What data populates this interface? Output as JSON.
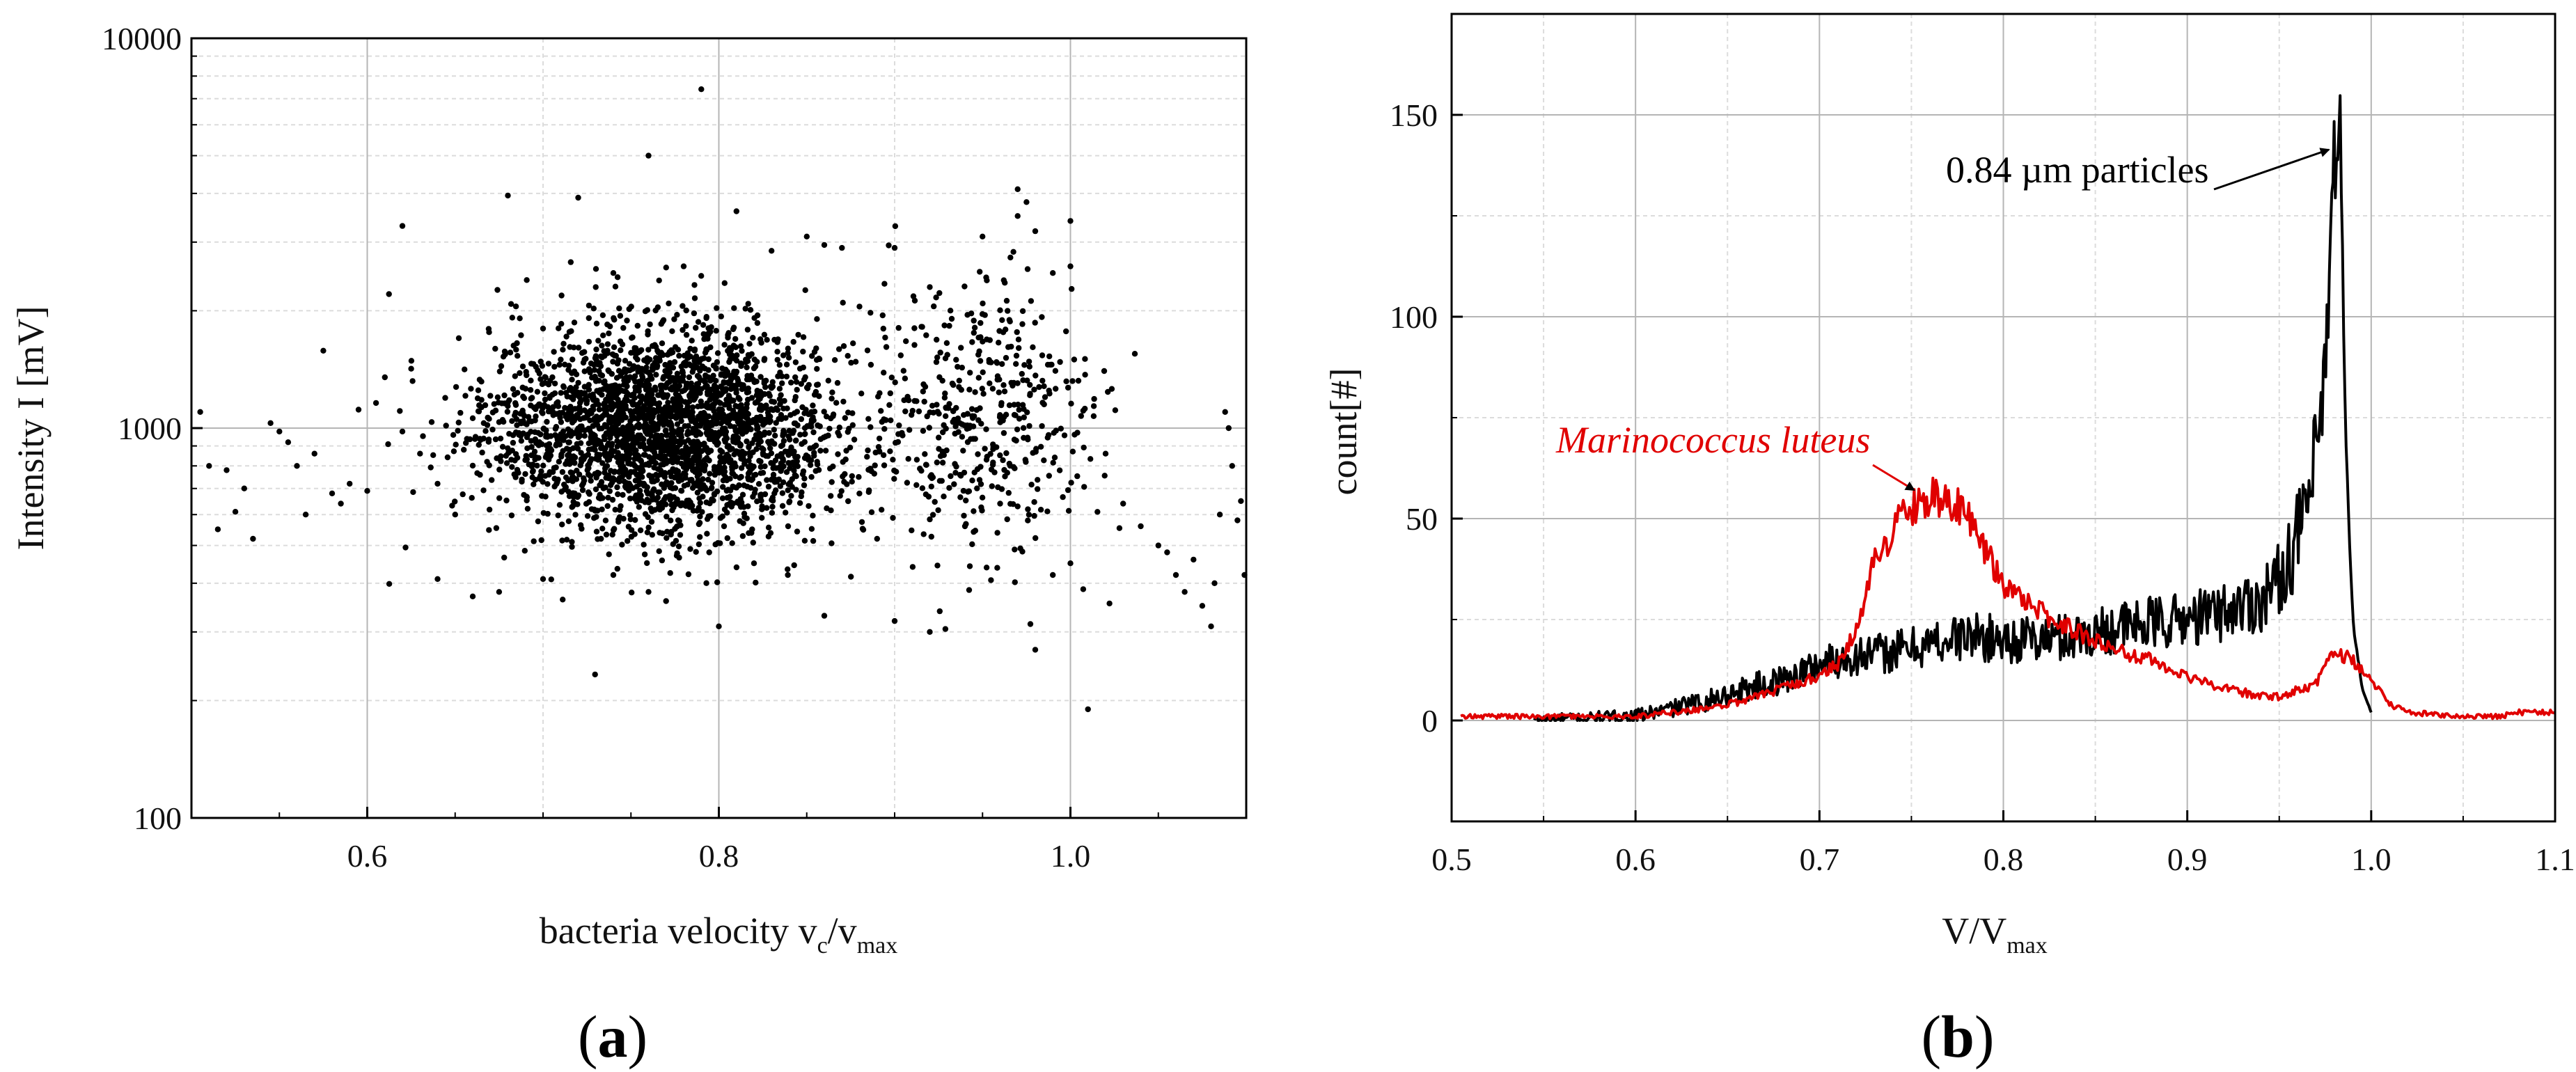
{
  "colors": {
    "black_series": "#000000",
    "red_series": "#e00000",
    "grid": "#b5b5b5",
    "minor_grid": "#dcdcdc"
  },
  "panels": {
    "a": {
      "open": "(",
      "letter": "a",
      "close": ")"
    },
    "b": {
      "open": "(",
      "letter": "b",
      "close": ")"
    }
  },
  "chart_data": [
    {
      "type": "scatter",
      "title": "",
      "ylabel": "Intensity I [mV]",
      "xlabel_parts": {
        "main": "bacteria velocity v",
        "sub1": "c",
        "slash": "/v",
        "sub2": "max"
      },
      "xlim": [
        0.5,
        1.1
      ],
      "ylim": [
        100,
        10000
      ],
      "yscale": "log",
      "xticks": [
        "0.6",
        "0.8",
        "1.0"
      ],
      "yticks": [
        "100",
        "1000",
        "10000"
      ],
      "grid": true,
      "series": [
        {
          "marker_color": "#000000",
          "cluster": {
            "x_center": 0.77,
            "x_spread": 0.05,
            "y_center": 1000,
            "y_log_spread": 0.13
          },
          "points": [
            [
              0.505,
              1100
            ],
            [
              0.51,
              800
            ],
            [
              0.515,
              550
            ],
            [
              0.52,
              780
            ],
            [
              0.525,
              610
            ],
            [
              0.53,
              700
            ],
            [
              0.535,
              520
            ],
            [
              0.545,
              1030
            ],
            [
              0.55,
              980
            ],
            [
              0.555,
              920
            ],
            [
              0.56,
              800
            ],
            [
              0.565,
              600
            ],
            [
              0.57,
              860
            ],
            [
              0.575,
              1580
            ],
            [
              0.58,
              680
            ],
            [
              0.585,
              640
            ],
            [
              0.59,
              720
            ],
            [
              0.6,
              690
            ],
            [
              0.605,
              1160
            ],
            [
              0.61,
              1350
            ],
            [
              0.62,
              980
            ],
            [
              0.62,
              3300
            ],
            [
              0.625,
              1420
            ],
            [
              0.63,
              860
            ],
            [
              0.64,
              720
            ],
            [
              0.65,
              600
            ],
            [
              0.66,
              1060
            ],
            [
              0.67,
              1210
            ],
            [
              0.68,
              3950
            ],
            [
              0.7,
              1800
            ],
            [
              0.72,
              3900
            ],
            [
              0.73,
              2300
            ],
            [
              0.74,
              2500
            ],
            [
              0.76,
              5000
            ],
            [
              0.78,
              2600
            ],
            [
              0.79,
              7400
            ],
            [
              0.81,
              3600
            ],
            [
              0.83,
              2850
            ],
            [
              0.85,
              3100
            ],
            [
              0.86,
              2950
            ],
            [
              0.87,
              2900
            ],
            [
              0.88,
              2050
            ],
            [
              0.9,
              2900
            ],
            [
              0.92,
              2300
            ],
            [
              0.95,
              3100
            ],
            [
              0.97,
              4100
            ],
            [
              0.97,
              3500
            ],
            [
              0.975,
              3800
            ],
            [
              0.98,
              3200
            ],
            [
              0.99,
              2500
            ],
            [
              1.0,
              3400
            ],
            [
              1.0,
              2600
            ],
            [
              0.64,
              410
            ],
            [
              0.66,
              370
            ],
            [
              0.675,
              380
            ],
            [
              0.7,
              410
            ],
            [
              0.74,
              420
            ],
            [
              0.76,
              380
            ],
            [
              0.77,
              360
            ],
            [
              0.8,
              310
            ],
            [
              0.82,
              450
            ],
            [
              0.86,
              330
            ],
            [
              0.89,
              520
            ],
            [
              0.9,
              320
            ],
            [
              0.92,
              300
            ],
            [
              0.94,
              560
            ],
            [
              0.96,
              640
            ],
            [
              0.98,
              270
            ],
            [
              0.99,
              420
            ],
            [
              1.0,
              450
            ],
            [
              1.01,
              190
            ],
            [
              1.02,
              860
            ],
            [
              1.03,
              640
            ],
            [
              1.04,
              560
            ],
            [
              1.05,
              500
            ],
            [
              1.055,
              480
            ],
            [
              1.06,
              420
            ],
            [
              1.065,
              380
            ],
            [
              1.07,
              460
            ],
            [
              1.075,
              350
            ],
            [
              1.08,
              310
            ],
            [
              1.082,
              400
            ],
            [
              1.085,
              600
            ],
            [
              1.088,
              1100
            ],
            [
              1.09,
              1000
            ],
            [
              1.092,
              800
            ],
            [
              1.095,
              580
            ],
            [
              1.097,
              650
            ],
            [
              1.099,
              420
            ]
          ]
        }
      ]
    },
    {
      "type": "line",
      "title": "",
      "ylabel": "count[#]",
      "xlabel_parts": {
        "main": "V/V",
        "sub": "max"
      },
      "xlim": [
        0.5,
        1.1
      ],
      "ylim": [
        -25,
        175
      ],
      "xticks": [
        "0.5",
        "0.6",
        "0.7",
        "0.8",
        "0.9",
        "1.0",
        "1.1"
      ],
      "yticks": [
        "0",
        "50",
        "100",
        "150"
      ],
      "grid": true,
      "series": [
        {
          "name": "0.84 µm particles",
          "color": "#000000",
          "x": [
            0.545,
            0.6,
            0.62,
            0.64,
            0.66,
            0.68,
            0.7,
            0.72,
            0.74,
            0.76,
            0.78,
            0.8,
            0.82,
            0.84,
            0.86,
            0.88,
            0.9,
            0.92,
            0.94,
            0.95,
            0.96,
            0.97,
            0.975,
            0.98,
            0.983,
            0.986,
            0.99,
            0.995,
            1.0
          ],
          "y": [
            0,
            1,
            3,
            5,
            8,
            10,
            14,
            16,
            17,
            19,
            21,
            20,
            20,
            21,
            23,
            24,
            25,
            27,
            30,
            35,
            45,
            62,
            85,
            125,
            155,
            70,
            25,
            8,
            2
          ]
        },
        {
          "name": "Marinococcus luteus",
          "color": "#e00000",
          "x": [
            0.505,
            0.55,
            0.6,
            0.62,
            0.64,
            0.66,
            0.68,
            0.7,
            0.71,
            0.72,
            0.73,
            0.74,
            0.75,
            0.76,
            0.77,
            0.78,
            0.79,
            0.8,
            0.81,
            0.82,
            0.83,
            0.84,
            0.85,
            0.86,
            0.87,
            0.88,
            0.9,
            0.92,
            0.94,
            0.95,
            0.97,
            0.98,
            0.99,
            1.0,
            1.01,
            1.02,
            1.05,
            1.07,
            1.08,
            1.1
          ],
          "y": [
            1,
            1,
            1,
            2,
            3,
            5,
            8,
            11,
            14,
            22,
            40,
            47,
            52,
            55,
            55,
            50,
            42,
            33,
            30,
            27,
            24,
            22,
            20,
            18,
            16,
            15,
            11,
            8,
            6,
            6,
            9,
            17,
            15,
            10,
            4,
            2,
            1,
            1,
            2,
            2
          ]
        }
      ],
      "annotations": [
        {
          "text_parts": {
            "num": "0.84",
            "unit": "µm",
            "rest": " particles"
          },
          "points_to": [
            0.983,
            140
          ]
        },
        {
          "text": "Marinococcus luteus",
          "points_to": [
            0.753,
            55
          ]
        }
      ]
    }
  ]
}
